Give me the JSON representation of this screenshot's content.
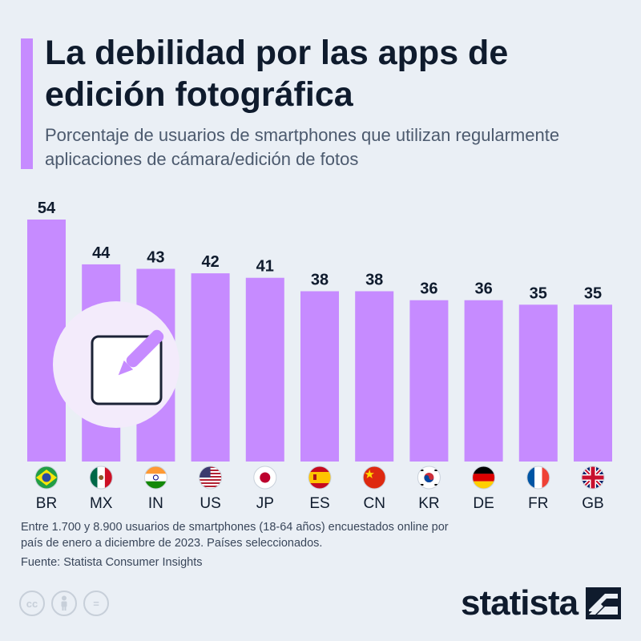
{
  "title": "La debilidad por las apps de edición fotográfica",
  "subtitle": "Porcentaje de usuarios de smartphones que utilizan regularmente aplicaciones de cámara/edición de fotos",
  "footnote": "Entre 1.700 y 8.900 usuarios de smartphones (18-64 años) encuestados online por país de enero a diciembre de 2023. Países seleccionados.",
  "source": "Fuente: Statista Consumer Insights",
  "brand": "statista",
  "colors": {
    "bar": "#c68bff",
    "background": "#eaeff5",
    "text": "#0f1b2d",
    "icon_circle": "#f3ebfb"
  },
  "icons": [
    "edit-pencil-icon",
    "cc-license-icon",
    "attribution-icon",
    "no-derivatives-icon",
    "statista-logo-icon"
  ],
  "license": {
    "cc": "cc",
    "nd": "="
  },
  "chart_data": {
    "type": "bar",
    "categories": [
      "BR",
      "MX",
      "IN",
      "US",
      "JP",
      "ES",
      "CN",
      "KR",
      "DE",
      "FR",
      "GB"
    ],
    "values": [
      54,
      44,
      43,
      42,
      41,
      38,
      38,
      36,
      36,
      35,
      35
    ],
    "flags": [
      "brazil-flag-icon",
      "mexico-flag-icon",
      "india-flag-icon",
      "usa-flag-icon",
      "japan-flag-icon",
      "spain-flag-icon",
      "china-flag-icon",
      "south-korea-flag-icon",
      "germany-flag-icon",
      "france-flag-icon",
      "uk-flag-icon"
    ],
    "title": "",
    "xlabel": "",
    "ylabel": "",
    "ylim": [
      0,
      54
    ],
    "grid": false,
    "data_labels": true
  }
}
